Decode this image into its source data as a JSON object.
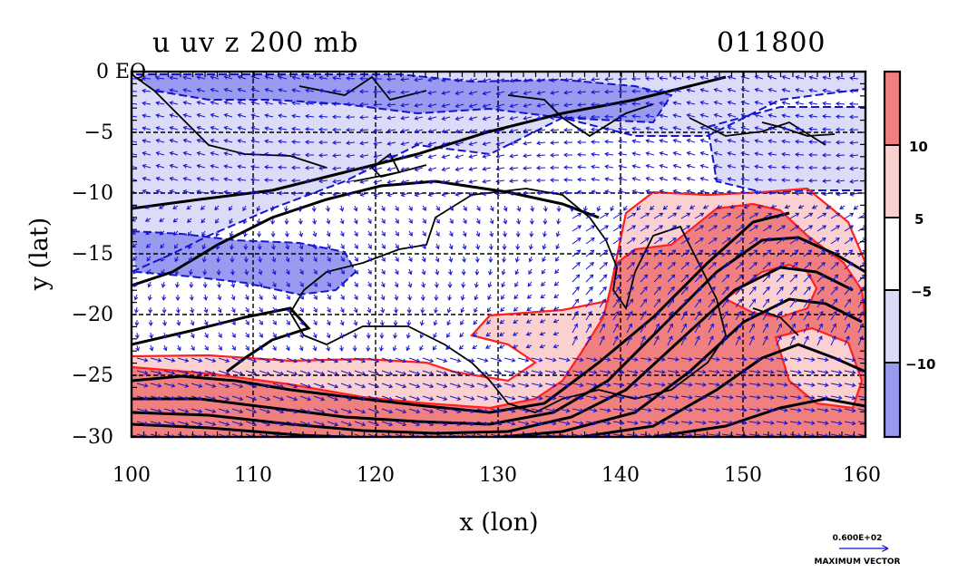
{
  "header": {
    "title": "u uv z 200 mb",
    "date": "011800"
  },
  "chart_data": {
    "type": "contour-map",
    "xlabel": "x (lon)",
    "ylabel": "y (lat)",
    "xlim": [
      100,
      160
    ],
    "ylim": [
      -30,
      0
    ],
    "x_ticks": [
      "100",
      "110",
      "120",
      "130",
      "140",
      "150",
      "160"
    ],
    "y_ticks": [
      "0 EQ",
      "−5",
      "−10",
      "−15",
      "−20",
      "−25",
      "−30"
    ],
    "grid": true,
    "shading_levels": [
      -15,
      -10,
      -5,
      5,
      10,
      15
    ],
    "colorbar_labels": [
      "10",
      "5",
      "−5",
      "−10"
    ],
    "colors": {
      "strong_positive": "#f08080",
      "weak_positive": "#fbd0d0",
      "neutral": "#ffffff",
      "weak_negative": "#dcdcf8",
      "strong_negative": "#9a9af0",
      "vector": "#1515d0",
      "negative_contour": "#1515d0",
      "positive_contour": "#ff2020",
      "height_contour": "#000000"
    },
    "vector_reference": {
      "value": "0.600E+02",
      "label": "MAXIMUM VECTOR"
    }
  }
}
